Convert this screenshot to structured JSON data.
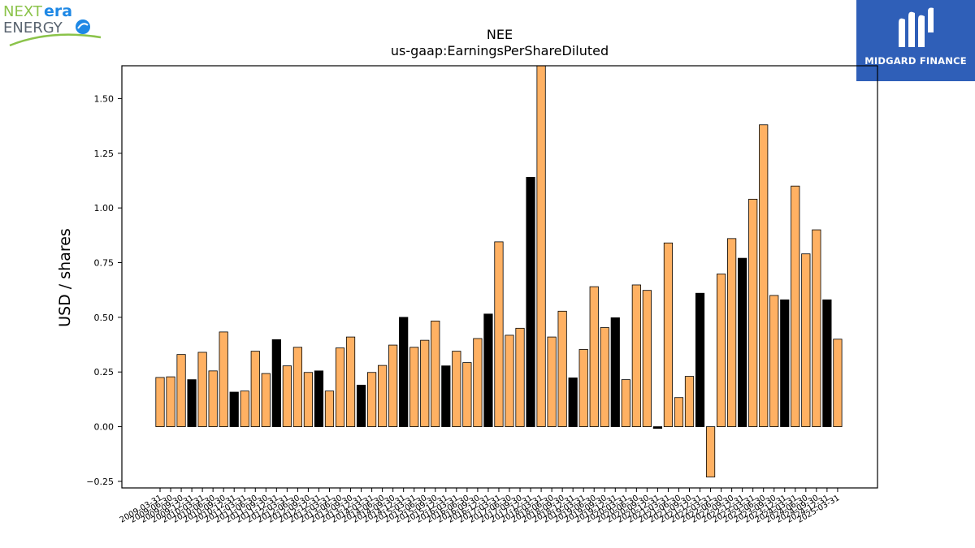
{
  "logos": {
    "left": {
      "word1": "NEXT",
      "word2": "era",
      "word3": "ENERGY"
    },
    "right": {
      "name": "MIDGARD FINANCE"
    }
  },
  "colors": {
    "positive": "#ffb163",
    "highlight": "#000000",
    "edge": "#000000"
  },
  "chart_data": {
    "type": "bar",
    "title": "NEE",
    "subtitle": "us-gaap:EarningsPerShareDiluted",
    "xlabel": "",
    "ylabel": "USD / shares",
    "ylim": [
      -0.28,
      1.65
    ],
    "yticks": [
      -0.25,
      0.0,
      0.25,
      0.5,
      0.75,
      1.0,
      1.25,
      1.5
    ],
    "ytick_labels": [
      "−0.25",
      "0.00",
      "0.25",
      "0.50",
      "0.75",
      "1.00",
      "1.25",
      "1.50"
    ],
    "grid": false,
    "categories": [
      "2009-03-31",
      "2009-06-30",
      "2009-09-30",
      "2009-12-31",
      "2010-03-31",
      "2010-06-30",
      "2010-09-30",
      "2010-12-31",
      "2011-03-31",
      "2011-06-30",
      "2011-09-30",
      "2011-12-31",
      "2012-03-31",
      "2012-06-30",
      "2012-09-30",
      "2012-12-31",
      "2013-03-31",
      "2013-06-30",
      "2013-09-30",
      "2013-12-31",
      "2014-03-31",
      "2014-06-30",
      "2014-09-30",
      "2014-12-31",
      "2015-03-31",
      "2015-06-30",
      "2015-09-30",
      "2015-12-31",
      "2016-03-31",
      "2016-06-30",
      "2016-09-30",
      "2016-12-31",
      "2017-03-31",
      "2017-06-30",
      "2017-09-30",
      "2017-12-31",
      "2018-03-31",
      "2018-06-30",
      "2018-09-30",
      "2018-12-31",
      "2019-03-31",
      "2019-06-30",
      "2019-09-30",
      "2019-12-31",
      "2020-03-31",
      "2020-06-30",
      "2020-09-30",
      "2020-12-31",
      "2021-03-31",
      "2021-06-30",
      "2021-09-30",
      "2021-12-31",
      "2022-03-31",
      "2022-06-30",
      "2022-09-30",
      "2022-12-31",
      "2023-03-31",
      "2023-06-30",
      "2023-09-30",
      "2023-12-31",
      "2024-03-31",
      "2024-06-30",
      "2024-09-30",
      "2024-12-31",
      "2025-03-31"
    ],
    "values": [
      0.225,
      0.228,
      0.33,
      0.215,
      0.34,
      0.255,
      0.433,
      0.158,
      0.163,
      0.345,
      0.243,
      0.398,
      0.278,
      0.363,
      0.248,
      0.255,
      0.163,
      0.36,
      0.41,
      0.19,
      0.248,
      0.28,
      0.373,
      0.5,
      0.363,
      0.395,
      0.483,
      0.278,
      0.345,
      0.293,
      0.403,
      0.515,
      0.845,
      0.418,
      0.45,
      1.14,
      1.67,
      0.41,
      0.528,
      0.223,
      0.353,
      0.64,
      0.453,
      0.498,
      0.215,
      0.648,
      0.623,
      -0.008,
      0.84,
      0.133,
      0.23,
      0.61,
      -0.23,
      0.698,
      0.86,
      0.77,
      1.04,
      1.38,
      0.6,
      0.58,
      1.1,
      0.79,
      0.9,
      0.58,
      0.4
    ],
    "highlight_quarter": "12-31"
  }
}
